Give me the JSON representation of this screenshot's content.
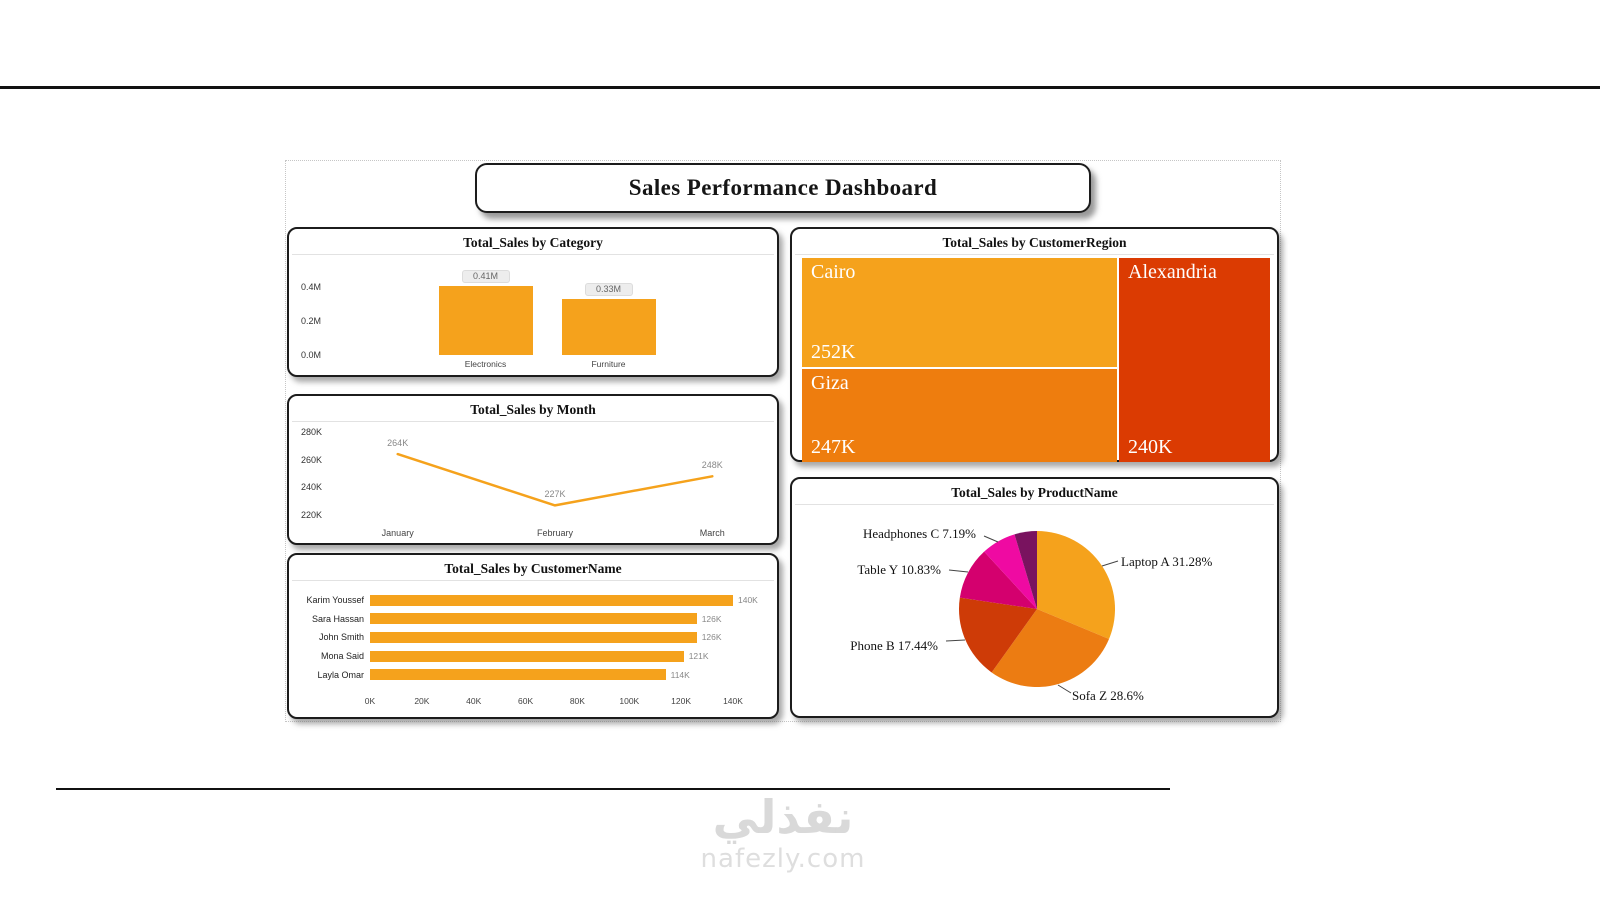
{
  "dashboard": {
    "title": "Sales Performance Dashboard"
  },
  "watermark": {
    "arabic": "نفذلي",
    "site": "nafezly.com"
  },
  "accent_color": "#F5A21C",
  "chart_data": [
    {
      "type": "bar",
      "title": "Total_Sales by Category",
      "categories": [
        "Electronics",
        "Furniture"
      ],
      "values": [
        0.41,
        0.33
      ],
      "value_labels": [
        "0.41M",
        "0.33M"
      ],
      "yticks": [
        {
          "v": 0.0,
          "label": "0.0M"
        },
        {
          "v": 0.2,
          "label": "0.2M"
        },
        {
          "v": 0.4,
          "label": "0.4M"
        }
      ],
      "ylim": [
        0,
        0.45
      ],
      "color": "#F5A21C"
    },
    {
      "type": "line",
      "title": "Total_Sales by Month",
      "categories": [
        "January",
        "February",
        "March"
      ],
      "values": [
        264,
        227,
        248
      ],
      "value_labels": [
        "264K",
        "227K",
        "248K"
      ],
      "yticks": [
        {
          "v": 220,
          "label": "220K"
        },
        {
          "v": 240,
          "label": "240K"
        },
        {
          "v": 260,
          "label": "260K"
        },
        {
          "v": 280,
          "label": "280K"
        }
      ],
      "ylim": [
        215,
        285
      ],
      "color": "#F5A21C"
    },
    {
      "type": "hbar",
      "title": "Total_Sales by CustomerName",
      "categories": [
        "Karim Youssef",
        "Sara Hassan",
        "John Smith",
        "Mona Said",
        "Layla Omar"
      ],
      "values": [
        140,
        126,
        126,
        121,
        114
      ],
      "value_labels": [
        "140K",
        "126K",
        "126K",
        "121K",
        "114K"
      ],
      "xticks": [
        {
          "v": 0,
          "label": "0K"
        },
        {
          "v": 20,
          "label": "20K"
        },
        {
          "v": 40,
          "label": "40K"
        },
        {
          "v": 60,
          "label": "60K"
        },
        {
          "v": 80,
          "label": "80K"
        },
        {
          "v": 100,
          "label": "100K"
        },
        {
          "v": 120,
          "label": "120K"
        },
        {
          "v": 140,
          "label": "140K"
        }
      ],
      "xlim": [
        0,
        140
      ],
      "color": "#F5A21C"
    },
    {
      "type": "treemap",
      "title": "Total_Sales by CustomerRegion",
      "cells": [
        {
          "name": "Cairo",
          "value": 252,
          "value_label": "252K",
          "color": "#F5A21C"
        },
        {
          "name": "Giza",
          "value": 247,
          "value_label": "247K",
          "color": "#EE7D0E"
        },
        {
          "name": "Alexandria",
          "value": 240,
          "value_label": "240K",
          "color": "#DB3B02"
        }
      ]
    },
    {
      "type": "pie",
      "title": "Total_Sales by ProductName",
      "slices": [
        {
          "label": "Laptop A",
          "pct": 31.28,
          "display": "Laptop A 31.28%",
          "color": "#F5A21C"
        },
        {
          "label": "Sofa Z",
          "pct": 28.6,
          "display": "Sofa Z 28.6%",
          "color": "#EC7C12"
        },
        {
          "label": "Phone B",
          "pct": 17.44,
          "display": "Phone B 17.44%",
          "color": "#CE3B07"
        },
        {
          "label": "Table Y",
          "pct": 10.83,
          "display": "Table Y 10.83%",
          "color": "#D4006E"
        },
        {
          "label": "Headphones C",
          "pct": 7.19,
          "display": "Headphones C 7.19%",
          "color": "#EF0AA2"
        },
        {
          "label": "",
          "pct": 4.66,
          "display": "",
          "color": "#79135F"
        }
      ]
    }
  ]
}
